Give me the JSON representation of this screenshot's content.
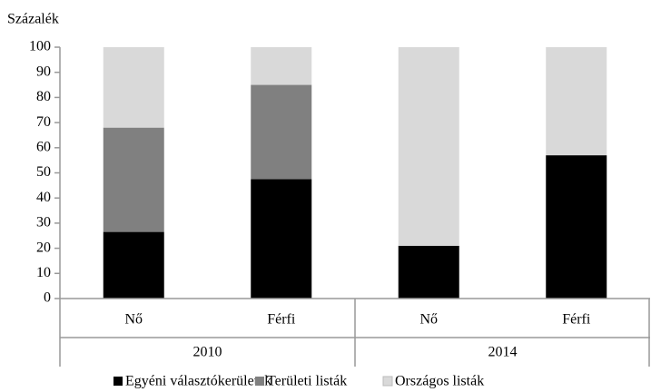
{
  "chart_data": {
    "type": "stacked_bar",
    "y_label": "Százalék",
    "categories": [
      "Nő",
      "Férfi",
      "Nő",
      "Férfi"
    ],
    "groups": [
      "2010",
      "2014"
    ],
    "series": [
      {
        "name": "Egyéni választókerületek",
        "color": "#000000",
        "values": [
          26.5,
          47.5,
          21,
          57
        ]
      },
      {
        "name": "Területi listák",
        "color": "#808080",
        "values": [
          41.5,
          37.5,
          0,
          0
        ]
      },
      {
        "name": "Országos listák",
        "color": "#d9d9d9",
        "values": [
          32,
          15,
          79,
          43
        ]
      }
    ],
    "ylim": [
      0,
      100
    ],
    "yticks": [
      0,
      10,
      20,
      30,
      40,
      50,
      60,
      70,
      80,
      90,
      100
    ],
    "grid": false,
    "legend": "bottom"
  }
}
